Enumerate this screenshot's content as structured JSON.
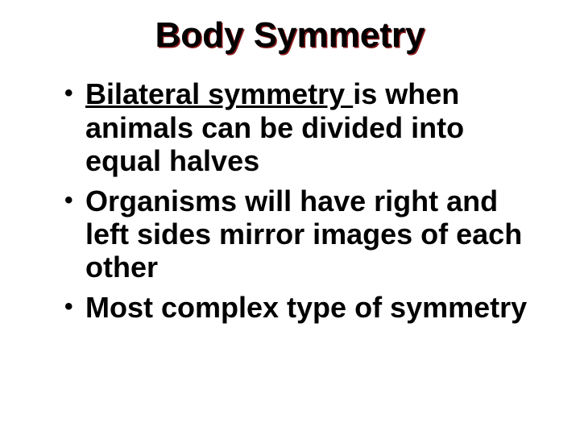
{
  "slide": {
    "background_color": "#ffffff",
    "title": {
      "text": "Body Symmetry",
      "font_family": "Comic Sans MS",
      "font_size_pt": 44,
      "font_weight": "bold",
      "color_front": "#000000",
      "color_shadow": "#8b1a1a",
      "align": "center"
    },
    "bullets": {
      "marker": "•",
      "font_family": "Comic Sans MS",
      "font_size_pt": 36,
      "font_weight": "bold",
      "color": "#000000",
      "items": [
        {
          "underlined_lead": "Bilateral symmetry ",
          "rest": "is when animals can be divided into equal halves"
        },
        {
          "underlined_lead": "",
          "rest": "Organisms will have right and left sides mirror images of each other"
        },
        {
          "underlined_lead": "",
          "rest": "Most complex type of symmetry"
        }
      ]
    }
  }
}
